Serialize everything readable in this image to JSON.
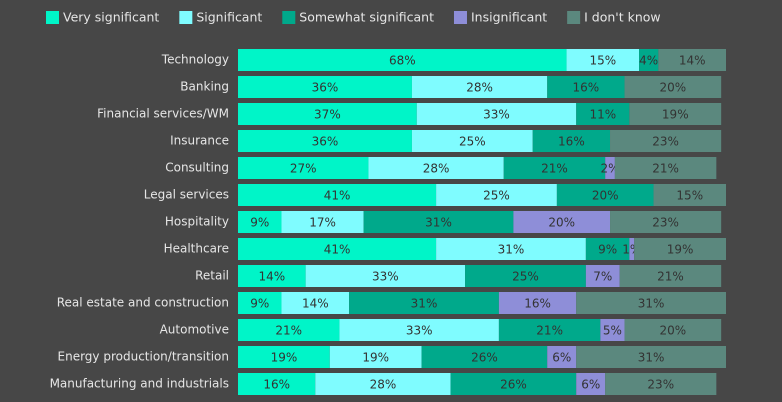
{
  "chart_data": {
    "type": "stacked-bar-horizontal",
    "categories": [
      "Technology",
      "Banking",
      "Financial services/WM",
      "Insurance",
      "Consulting",
      "Legal services",
      "Hospitality",
      "Healthcare",
      "Retail",
      "Real estate and construction",
      "Automotive",
      "Energy production/transition",
      "Manufacturing and industrials"
    ],
    "series": [
      {
        "name": "Very significant",
        "color": "#00f5c8",
        "values": [
          68,
          36,
          37,
          36,
          27,
          41,
          9,
          41,
          14,
          9,
          21,
          19,
          16
        ],
        "value_labels": [
          "68%",
          "36%",
          "37%",
          "36%",
          "27%",
          "41%",
          "9%",
          "41%",
          "14%",
          "9%",
          "21%",
          "19%",
          "16%"
        ]
      },
      {
        "name": "Significant",
        "color": "#7ffcff",
        "values": [
          15,
          28,
          33,
          25,
          28,
          25,
          17,
          31,
          33,
          14,
          33,
          19,
          28
        ],
        "value_labels": [
          "15%",
          "28%",
          "33%",
          "25%",
          "28%",
          "25%",
          "17%",
          "31%",
          "33%",
          "14%",
          "33%",
          "19%",
          "28%"
        ]
      },
      {
        "name": "Somewhat significant",
        "color": "#00a98b",
        "values": [
          4,
          16,
          11,
          16,
          21,
          20,
          31,
          9,
          25,
          31,
          21,
          26,
          26
        ],
        "value_labels": [
          "4%",
          "16%",
          "11%",
          "16%",
          "21%",
          "20%",
          "31%",
          "9%",
          "25%",
          "31%",
          "21%",
          "26%",
          "26%"
        ]
      },
      {
        "name": "Insignificant",
        "color": "#8e8ed8",
        "values": [
          null,
          null,
          null,
          null,
          2,
          null,
          20,
          1,
          7,
          16,
          5,
          6,
          6
        ],
        "value_labels": [
          null,
          null,
          null,
          null,
          "2%",
          null,
          "20%",
          "1%",
          "7%",
          "16%",
          "5%",
          "6%",
          "6%"
        ]
      },
      {
        "name": "I don't know",
        "color": "#5b887e",
        "values": [
          14,
          20,
          19,
          23,
          21,
          15,
          23,
          19,
          21,
          31,
          20,
          31,
          23
        ],
        "value_labels": [
          "14%",
          "20%",
          "19%",
          "23%",
          "21%",
          "15%",
          "23%",
          "19%",
          "21%",
          "31%",
          "20%",
          "31%",
          "23%"
        ]
      }
    ]
  }
}
